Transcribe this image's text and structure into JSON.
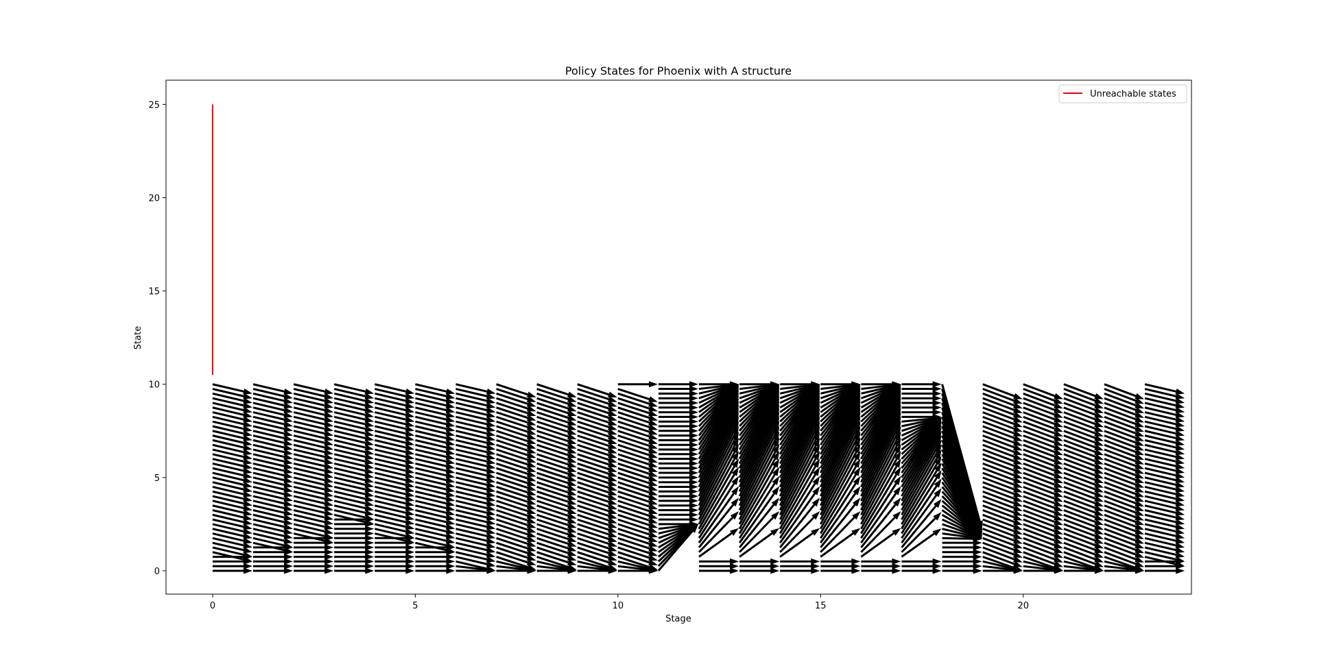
{
  "chart_data": {
    "type": "quiver",
    "title": "Policy States for Phoenix with A structure",
    "xlabel": "Stage",
    "ylabel": "State",
    "xlim": [
      -1.15,
      24.15
    ],
    "ylim": [
      -1.25,
      26.3
    ],
    "x_ticks": [
      0,
      5,
      10,
      15,
      20
    ],
    "y_ticks": [
      0,
      5,
      10,
      15,
      20,
      25
    ],
    "grid": false,
    "legend": {
      "position": "top-right",
      "entries": [
        {
          "label": "Unreachable states",
          "color": "#ff0000"
        }
      ]
    },
    "unreachable_segments": [
      {
        "stage": 0,
        "state_from": 10.5,
        "state_to": 25
      }
    ],
    "state_step": 0.25,
    "state_max": 10,
    "arrow_color": "#000000",
    "transitions": [
      {
        "stage": 0,
        "pattern": "shift",
        "delta": -0.5,
        "flat_below": 1
      },
      {
        "stage": 1,
        "pattern": "shift",
        "delta": -0.5,
        "flat_below": 1.5
      },
      {
        "stage": 2,
        "pattern": "shift",
        "delta": -0.5,
        "flat_below": 2
      },
      {
        "stage": 3,
        "pattern": "shift",
        "delta": -0.5,
        "flat_below": 3
      },
      {
        "stage": 4,
        "pattern": "shift",
        "delta": -0.5,
        "flat_below": 2
      },
      {
        "stage": 5,
        "pattern": "shift",
        "delta": -0.5,
        "flat_below": 1.5
      },
      {
        "stage": 6,
        "pattern": "shift",
        "delta": -0.5,
        "flat_below": 0
      },
      {
        "stage": 7,
        "pattern": "shift",
        "delta": -0.7,
        "flat_below": 0
      },
      {
        "stage": 8,
        "pattern": "shift",
        "delta": -0.7,
        "flat_below": 0
      },
      {
        "stage": 9,
        "pattern": "shift",
        "delta": -0.7,
        "flat_below": 0
      },
      {
        "stage": 10,
        "pattern": "shift",
        "delta": -0.7,
        "flat_below": 0,
        "top_flat": true
      },
      {
        "stage": 11,
        "pattern": "rise",
        "threshold": 2.5
      },
      {
        "stage": 12,
        "pattern": "saturate",
        "low": 0.5,
        "high": 7.0
      },
      {
        "stage": 13,
        "pattern": "saturate",
        "low": 0.5,
        "high": 7.0
      },
      {
        "stage": 14,
        "pattern": "saturate",
        "low": 0.5,
        "high": 7.0
      },
      {
        "stage": 15,
        "pattern": "saturate",
        "low": 0.5,
        "high": 7.0
      },
      {
        "stage": 16,
        "pattern": "saturate",
        "low": 0.5,
        "high": 7.0
      },
      {
        "stage": 17,
        "pattern": "saturate",
        "low": 0.5,
        "high": 5.0,
        "target": 8.2
      },
      {
        "stage": 18,
        "pattern": "drain",
        "target": 1.7,
        "flat_below": 1.7
      },
      {
        "stage": 19,
        "pattern": "shift",
        "delta": -0.8,
        "flat_below": 0
      },
      {
        "stage": 20,
        "pattern": "shift",
        "delta": -0.8,
        "flat_below": 0
      },
      {
        "stage": 21,
        "pattern": "shift",
        "delta": -0.8,
        "flat_below": 0
      },
      {
        "stage": 22,
        "pattern": "shift",
        "delta": -0.8,
        "flat_below": 0
      },
      {
        "stage": 23,
        "pattern": "shift",
        "delta": -0.5,
        "flat_below": 0.75
      }
    ]
  }
}
